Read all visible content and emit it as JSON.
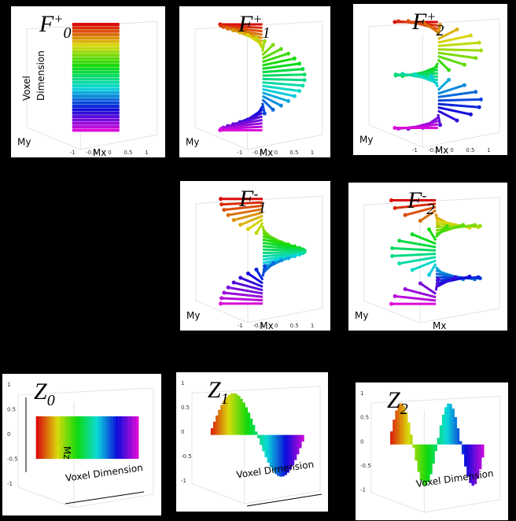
{
  "panels": [
    {
      "label": {
        "base": "F",
        "sup": "+",
        "sub": "0"
      },
      "side_labels": [
        "Voxel",
        "Dimension"
      ],
      "axis_labels": [
        "My",
        "Mx"
      ],
      "ticks": [
        "-1",
        "-0.5",
        "0",
        "0.5",
        "1"
      ]
    },
    {
      "label": {
        "base": "F",
        "sup": "+",
        "sub": "1"
      },
      "axis_labels": [
        "My",
        "Mx"
      ],
      "ticks": [
        "-1",
        "-0.5",
        "0",
        "0.5",
        "1"
      ]
    },
    {
      "label": {
        "base": "F",
        "sup": "+",
        "sub": "2"
      },
      "axis_labels": [
        "My",
        "Mx"
      ],
      "ticks": [
        "-1",
        "-0.5",
        "0",
        "0.5",
        "1"
      ]
    },
    {
      "label": {
        "base": "F",
        "sup": "-",
        "sub": "1"
      },
      "axis_labels": [
        "My",
        "Mx"
      ],
      "ticks": [
        "-1",
        "-0.5",
        "0",
        "0.5",
        "1"
      ]
    },
    {
      "label": {
        "base": "F",
        "sup": "-",
        "sub": "2"
      },
      "axis_labels": [
        "My",
        "Mx"
      ]
    },
    {
      "label": {
        "base": "Z",
        "sub": "0"
      },
      "axis_labels": [
        "Mz",
        "Voxel Dimension"
      ],
      "ticks": [
        "1",
        "0.5",
        "0",
        "-0.5",
        "-1"
      ]
    },
    {
      "label": {
        "base": "Z",
        "sub": "1"
      },
      "axis_labels": [
        "Voxel Dimension"
      ],
      "ticks": [
        "1",
        "0.5",
        "0",
        "-0.5",
        "-1"
      ]
    },
    {
      "label": {
        "base": "Z",
        "sub": "2"
      },
      "axis_labels": [
        "Voxel Dimension"
      ],
      "ticks": [
        "1",
        "0.5",
        "0",
        "-0.5",
        "-1"
      ]
    }
  ]
}
